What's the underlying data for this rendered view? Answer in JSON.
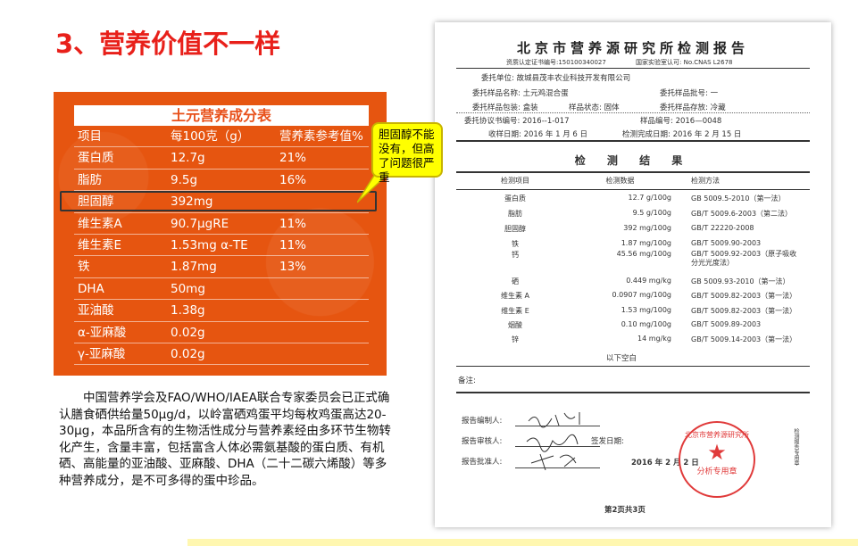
{
  "title": "3、营养价值不一样",
  "nutrition_table": {
    "title": "土元营养成分表",
    "headers": [
      "项目",
      "每100克（g）",
      "营养素参考值%"
    ],
    "rows": [
      [
        "蛋白质",
        "12.7g",
        "21%"
      ],
      [
        "脂肪",
        "9.5g",
        "16%"
      ],
      [
        "胆固醇",
        "392mg",
        ""
      ],
      [
        "维生素A",
        "90.7μgRE",
        "11%"
      ],
      [
        "维生素E",
        "1.53mg α-TE",
        "11%"
      ],
      [
        "铁",
        "1.87mg",
        "13%"
      ],
      [
        "DHA",
        "50mg",
        ""
      ],
      [
        "亚油酸",
        "1.38g",
        ""
      ],
      [
        "α-亚麻酸",
        "0.02g",
        ""
      ],
      [
        "γ-亚麻酸",
        "0.02g",
        ""
      ]
    ]
  },
  "callout": "胆固醇不能没有，但高了问题很严重",
  "paragraph": "中国营养学会及FAO/WHO/IAEA联合专家委员会已正式确认膳食硒供给量50μg/d，以岭富硒鸡蛋平均每枚鸡蛋高达20-30μg，本品所含有的生物活性成分与营养素经由多环节生物转化产生，含量丰富，包括富含人体必需氨基酸的蛋白质、有机硒、高能量的亚油酸、亚麻酸、DHA（二十二碳六烯酸）等多种营养成分，是不可多得的蛋中珍品。",
  "report": {
    "title": "北京市营养源研究所检测报告",
    "cert": "资质认定证书编号:150100340027",
    "cnas": "国家实验室认可: No.CNAS L2678",
    "client": "委托单位: 故城县茂丰农业科技开发有限公司",
    "sample_name": "委托样品名称: 土元鸡混合蛋",
    "batch": "委托样品批号: 一",
    "package": "委托样品包装: 盒装",
    "state": "样品状态: 固体",
    "storage": "委托样品存放: 冷藏",
    "agreement": "委托协议书编号: 2016--1-017",
    "sample_no": "样品编号: 2016—0048",
    "received": "收样日期: 2016 年 1 月 6 日",
    "completed": "检测完成日期: 2016 年 2 月 15 日",
    "results_title": "检 测 结 果",
    "headers": [
      "检测项目",
      "检测数据",
      "检测方法"
    ],
    "rows": [
      [
        "蛋白质",
        "12.7 g/100g",
        "GB 5009.5-2010（第一法）"
      ],
      [
        "脂肪",
        "9.5 g/100g",
        "GB/T 5009.6-2003（第二法）"
      ],
      [
        "胆固醇",
        "392 mg/100g",
        "GB/T 22220-2008"
      ],
      [
        "铁",
        "1.87 mg/100g",
        "GB/T 5009.90-2003"
      ],
      [
        "钙",
        "45.56 mg/100g",
        "GB/T 5009.92-2003（原子吸收分光光度法）"
      ],
      [
        "硒",
        "0.449 mg/kg",
        "GB 5009.93-2010（第一法）"
      ],
      [
        "维生素 A",
        "0.0907 mg/100g",
        "GB/T 5009.82-2003（第一法）"
      ],
      [
        "维生素 E",
        "1.53 mg/100g",
        "GB/T 5009.82-2003（第一法）"
      ],
      [
        "烟酸",
        "0.10 mg/100g",
        "GB/T 5009.89-2003"
      ],
      [
        "锌",
        "14 mg/kg",
        "GB/T 5009.14-2003（第一法）"
      ]
    ],
    "blank": "以下空白",
    "remarks": "备注:",
    "compiler": "报告编制人:",
    "reviewer": "报告审核人:",
    "approver": "报告批准人:",
    "issue_date_label": "签发日期:",
    "issue_date": "2016 年 2 月 2 日",
    "seal_text": "北京市营养源研究所",
    "seal_sub": "分析专用章",
    "side_note": "检测报告专用章",
    "page": "第2页共3页"
  }
}
